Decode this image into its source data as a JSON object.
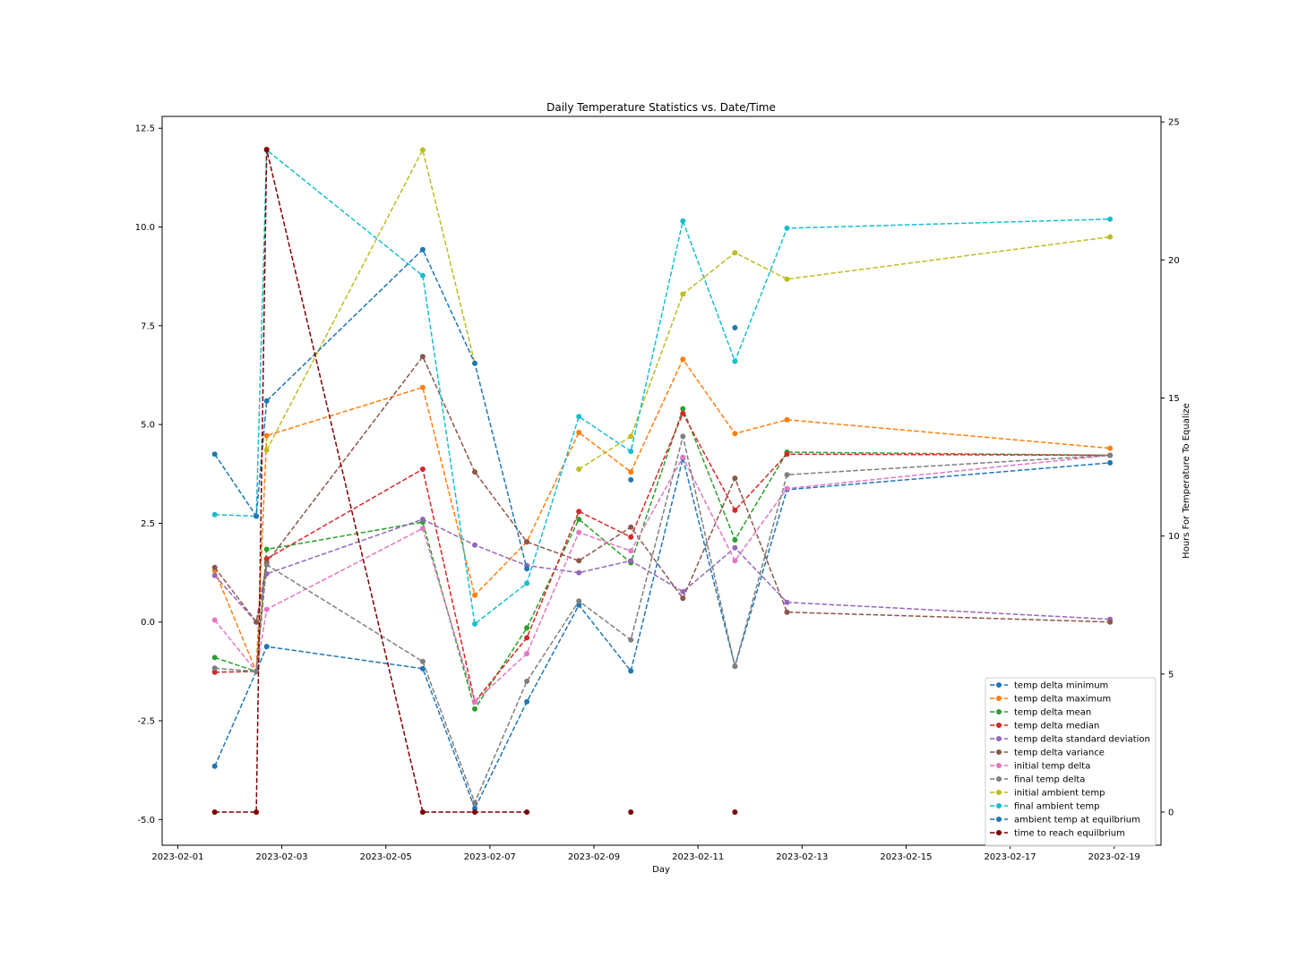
{
  "chart_data": {
    "type": "line",
    "title": "Daily Temperature Statistics vs. Date/Time",
    "xlabel": "Day",
    "ylabel": "",
    "y2label": "Hours For Temperature To Equalize",
    "x_tick_labels": [
      "2023-02-01",
      "2023-02-03",
      "2023-02-05",
      "2023-02-07",
      "2023-02-09",
      "2023-02-11",
      "2023-02-13",
      "2023-02-15",
      "2023-02-17",
      "2023-02-19"
    ],
    "x_ticks": [
      0,
      2,
      4,
      6,
      8,
      10,
      12,
      14,
      16,
      18
    ],
    "xlim": [
      -0.3,
      18.9
    ],
    "ylim": [
      -5.65,
      12.8
    ],
    "y_ticks": [
      -5.0,
      -2.5,
      0.0,
      2.5,
      5.0,
      7.5,
      10.0,
      12.5
    ],
    "y_tick_labels": [
      "-5.0",
      "-2.5",
      "0.0",
      "2.5",
      "5.0",
      "7.5",
      "10.0",
      "12.5"
    ],
    "y2lim": [
      -1.2,
      25.2
    ],
    "y2_ticks": [
      0,
      5,
      10,
      15,
      20,
      25
    ],
    "y2_tick_labels": [
      "0",
      "5",
      "10",
      "15",
      "20",
      "25"
    ],
    "x_unit": "days since 2023-02-01",
    "x_values": [
      0.71,
      1.51,
      1.71,
      4.71,
      5.71,
      6.71,
      7.71,
      8.71,
      9.71,
      10.71,
      11.71,
      17.92
    ],
    "legend_position": "lower right",
    "grid": false,
    "series": [
      {
        "name": "temp delta  minimum",
        "color": "#1f77b4",
        "axis": "left",
        "values": [
          -3.65,
          -1.25,
          -0.62,
          -1.18,
          -4.72,
          -2.02,
          0.43,
          -1.24,
          4.15,
          -1.12,
          3.35,
          4.03
        ]
      },
      {
        "name": "temp delta  maximum",
        "color": "#ff7f0e",
        "axis": "left",
        "values": [
          1.3,
          -1.25,
          4.72,
          5.94,
          0.68,
          2.03,
          4.8,
          3.8,
          6.65,
          4.77,
          5.12,
          4.4
        ]
      },
      {
        "name": "temp delta  mean",
        "color": "#2ca02c",
        "axis": "left",
        "values": [
          -0.9,
          -1.25,
          1.84,
          2.53,
          -2.2,
          -0.15,
          2.6,
          1.5,
          5.4,
          2.08,
          4.3,
          4.22
        ]
      },
      {
        "name": "temp delta  median",
        "color": "#d62728",
        "axis": "left",
        "values": [
          -1.27,
          -1.25,
          1.6,
          3.87,
          -2.02,
          -0.4,
          2.8,
          2.15,
          5.28,
          2.83,
          4.25,
          4.22
        ]
      },
      {
        "name": "temp delta  standard deviation",
        "color": "#9467bd",
        "axis": "left",
        "values": [
          1.18,
          0.0,
          1.22,
          2.6,
          1.95,
          1.43,
          1.25,
          1.55,
          0.77,
          1.88,
          0.5,
          0.07
        ]
      },
      {
        "name": "temp delta variance",
        "color": "#8c564b",
        "axis": "left",
        "values": [
          1.38,
          0.0,
          1.5,
          6.72,
          3.8,
          2.03,
          1.55,
          2.4,
          0.6,
          3.64,
          0.25,
          0.0
        ]
      },
      {
        "name": "initial temp delta",
        "color": "#e377c2",
        "axis": "left",
        "values": [
          0.05,
          -1.25,
          0.32,
          2.37,
          -2.02,
          -0.8,
          2.27,
          1.8,
          4.17,
          1.55,
          3.38,
          4.22
        ]
      },
      {
        "name": "final temp delta",
        "color": "#7f7f7f",
        "axis": "left",
        "values": [
          -1.17,
          -1.25,
          1.45,
          -1.0,
          -4.57,
          -1.5,
          0.53,
          -0.45,
          4.7,
          -1.12,
          3.73,
          4.22
        ]
      },
      {
        "name": "initial ambient temp",
        "color": "#bcbd22",
        "axis": "left",
        "values": [
          null,
          null,
          4.35,
          11.95,
          6.55,
          null,
          3.87,
          4.7,
          8.3,
          9.35,
          8.68,
          9.75
        ]
      },
      {
        "name": "final ambient temp",
        "color": "#17becf",
        "axis": "left",
        "values": [
          2.72,
          2.68,
          11.95,
          8.77,
          -0.05,
          0.98,
          5.2,
          4.32,
          10.15,
          6.6,
          9.97,
          10.2
        ]
      },
      {
        "name": "ambient temp at equilbrium",
        "color": "#1f77b4",
        "axis": "left",
        "values": [
          4.25,
          2.68,
          5.6,
          9.43,
          6.55,
          1.35,
          null,
          3.6,
          null,
          7.45,
          null,
          null
        ]
      },
      {
        "name": "time to reach equilbrium",
        "color": "#7f0000",
        "axis": "right",
        "values": [
          0,
          0,
          24,
          0,
          0,
          0,
          null,
          0,
          null,
          0,
          null,
          null
        ]
      }
    ]
  }
}
